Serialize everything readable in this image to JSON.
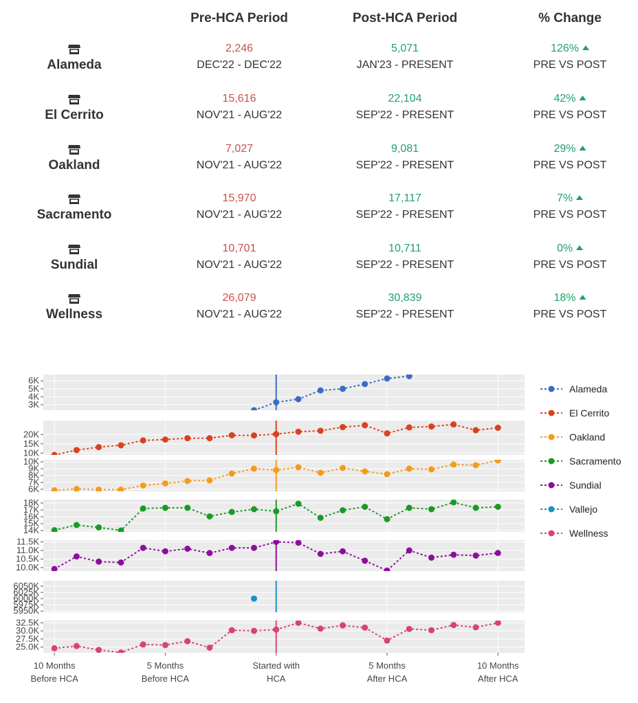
{
  "header": {
    "pre": "Pre-HCA Period",
    "post": "Post-HCA Period",
    "change": "% Change"
  },
  "stores": [
    {
      "name": "Alameda",
      "pre_value": "2,246",
      "pre_range": "DEC'22 - DEC'22",
      "post_value": "5,071",
      "post_range": "JAN'23 - PRESENT",
      "change": "126%",
      "change_label": "PRE VS POST"
    },
    {
      "name": "El Cerrito",
      "pre_value": "15,616",
      "pre_range": "NOV'21 - AUG'22",
      "post_value": "22,104",
      "post_range": "SEP'22 - PRESENT",
      "change": "42%",
      "change_label": "PRE VS POST"
    },
    {
      "name": "Oakland",
      "pre_value": "7,027",
      "pre_range": "NOV'21 - AUG'22",
      "post_value": "9,081",
      "post_range": "SEP'22 - PRESENT",
      "change": "29%",
      "change_label": "PRE VS POST"
    },
    {
      "name": "Sacramento",
      "pre_value": "15,970",
      "pre_range": "NOV'21 - AUG'22",
      "post_value": "17,117",
      "post_range": "SEP'22 - PRESENT",
      "change": "7%",
      "change_label": "PRE VS POST"
    },
    {
      "name": "Sundial",
      "pre_value": "10,701",
      "pre_range": "NOV'21 - AUG'22",
      "post_value": "10,711",
      "post_range": "SEP'22 - PRESENT",
      "change": "0%",
      "change_label": "PRE VS POST"
    },
    {
      "name": "Wellness",
      "pre_value": "26,079",
      "pre_range": "NOV'21 - AUG'22",
      "post_value": "30,839",
      "post_range": "SEP'22 - PRESENT",
      "change": "18%",
      "change_label": "PRE VS POST"
    }
  ],
  "icons": {
    "store": "store-icon",
    "trend": "triangle-up-icon"
  },
  "colors": {
    "pre": "#c9504a",
    "post": "#22a06b"
  },
  "chart_data": {
    "type": "line",
    "xlim": [
      -10.5,
      11.2
    ],
    "x_ticks": [
      {
        "x": -10,
        "line1": "10 Months",
        "line2": "Before HCA"
      },
      {
        "x": -5,
        "line1": "5 Months",
        "line2": "Before HCA"
      },
      {
        "x": 0,
        "line1": "Started with",
        "line2": "HCA"
      },
      {
        "x": 5,
        "line1": "5 Months",
        "line2": "After HCA"
      },
      {
        "x": 10,
        "line1": "10 Months",
        "line2": "After HCA"
      }
    ],
    "grid": true,
    "legend_position": "right",
    "series": [
      {
        "name": "Alameda",
        "color": "#3a6cc6",
        "ylim": [
          2300,
          6800
        ],
        "yticks": [
          {
            "v": 3000,
            "label": "3K"
          },
          {
            "v": 4000,
            "label": "4K"
          },
          {
            "v": 5000,
            "label": "5K"
          },
          {
            "v": 6000,
            "label": "6K"
          }
        ],
        "points": [
          [
            -1,
            2300
          ],
          [
            0,
            3300
          ],
          [
            1,
            3700
          ],
          [
            2,
            4800
          ],
          [
            3,
            5000
          ],
          [
            4,
            5600
          ],
          [
            5,
            6300
          ],
          [
            6,
            6600
          ]
        ]
      },
      {
        "name": "El Cerrito",
        "color": "#d9421e",
        "ylim": [
          9000,
          27500
        ],
        "yticks": [
          {
            "v": 10000,
            "label": "10K"
          },
          {
            "v": 15000,
            "label": "15K"
          },
          {
            "v": 20000,
            "label": "20K"
          }
        ],
        "points": [
          [
            -10,
            9000
          ],
          [
            -9,
            11600
          ],
          [
            -8,
            13200
          ],
          [
            -7,
            14200
          ],
          [
            -6,
            16800
          ],
          [
            -5,
            17300
          ],
          [
            -4,
            18000
          ],
          [
            -3,
            18000
          ],
          [
            -2,
            19600
          ],
          [
            -1,
            19500
          ],
          [
            0,
            20200
          ],
          [
            1,
            21500
          ],
          [
            2,
            22000
          ],
          [
            3,
            24000
          ],
          [
            4,
            25000
          ],
          [
            5,
            20600
          ],
          [
            6,
            23800
          ],
          [
            7,
            24300
          ],
          [
            8,
            25400
          ],
          [
            9,
            22300
          ],
          [
            10,
            23600
          ]
        ]
      },
      {
        "name": "Oakland",
        "color": "#f59b1b",
        "ylim": [
          5700,
          10300
        ],
        "yticks": [
          {
            "v": 6000,
            "label": "6K"
          },
          {
            "v": 7000,
            "label": "7K"
          },
          {
            "v": 8000,
            "label": "8K"
          },
          {
            "v": 9000,
            "label": "9K"
          },
          {
            "v": 10000,
            "label": "10K"
          }
        ],
        "points": [
          [
            -10,
            5850
          ],
          [
            -9,
            6050
          ],
          [
            -8,
            5950
          ],
          [
            -7,
            5950
          ],
          [
            -6,
            6550
          ],
          [
            -5,
            6850
          ],
          [
            -4,
            7200
          ],
          [
            -3,
            7300
          ],
          [
            -2,
            8300
          ],
          [
            -1,
            9000
          ],
          [
            0,
            8800
          ],
          [
            1,
            9200
          ],
          [
            2,
            8400
          ],
          [
            3,
            9100
          ],
          [
            4,
            8600
          ],
          [
            5,
            8200
          ],
          [
            6,
            9000
          ],
          [
            7,
            8900
          ],
          [
            8,
            9600
          ],
          [
            9,
            9500
          ],
          [
            10,
            10200
          ]
        ]
      },
      {
        "name": "Sacramento",
        "color": "#1a9a25",
        "ylim": [
          13800,
          18500
        ],
        "yticks": [
          {
            "v": 14000,
            "label": "14K"
          },
          {
            "v": 15000,
            "label": "15K"
          },
          {
            "v": 16000,
            "label": "16K"
          },
          {
            "v": 17000,
            "label": "17K"
          },
          {
            "v": 18000,
            "label": "18K"
          }
        ],
        "points": [
          [
            -10,
            14050
          ],
          [
            -9,
            14800
          ],
          [
            -8,
            14450
          ],
          [
            -7,
            14000
          ],
          [
            -6,
            17200
          ],
          [
            -5,
            17300
          ],
          [
            -4,
            17300
          ],
          [
            -3,
            16050
          ],
          [
            -2,
            16700
          ],
          [
            -1,
            17100
          ],
          [
            0,
            16800
          ],
          [
            1,
            17900
          ],
          [
            2,
            15850
          ],
          [
            3,
            16950
          ],
          [
            4,
            17450
          ],
          [
            5,
            15650
          ],
          [
            6,
            17300
          ],
          [
            7,
            17100
          ],
          [
            8,
            18100
          ],
          [
            9,
            17300
          ],
          [
            10,
            17450
          ]
        ]
      },
      {
        "name": "Sundial",
        "color": "#8c0e9c",
        "ylim": [
          9800,
          11600
        ],
        "yticks": [
          {
            "v": 10000,
            "label": "10.0K"
          },
          {
            "v": 10500,
            "label": "10.5K"
          },
          {
            "v": 11000,
            "label": "11.0K"
          },
          {
            "v": 11500,
            "label": "11.5K"
          }
        ],
        "points": [
          [
            -10,
            9920
          ],
          [
            -9,
            10650
          ],
          [
            -8,
            10350
          ],
          [
            -7,
            10300
          ],
          [
            -6,
            11150
          ],
          [
            -5,
            10950
          ],
          [
            -4,
            11100
          ],
          [
            -3,
            10850
          ],
          [
            -2,
            11150
          ],
          [
            -1,
            11150
          ],
          [
            0,
            11500
          ],
          [
            1,
            11450
          ],
          [
            2,
            10800
          ],
          [
            3,
            10950
          ],
          [
            4,
            10400
          ],
          [
            5,
            9830
          ],
          [
            6,
            11000
          ],
          [
            7,
            10580
          ],
          [
            8,
            10750
          ],
          [
            9,
            10700
          ],
          [
            10,
            10850
          ]
        ]
      },
      {
        "name": "Vallejo",
        "color": "#1a91c2",
        "ylim": [
          5945000,
          6072000
        ],
        "yticks": [
          {
            "v": 5950000,
            "label": "5950K"
          },
          {
            "v": 5975000,
            "label": "5975K"
          },
          {
            "v": 6000000,
            "label": "6000K"
          },
          {
            "v": 6025000,
            "label": "6025K"
          },
          {
            "v": 6050000,
            "label": "6050K"
          }
        ],
        "points": [
          [
            -1,
            6000000
          ]
        ]
      },
      {
        "name": "Wellness",
        "color": "#d9446e",
        "ylim": [
          23200,
          33200
        ],
        "yticks": [
          {
            "v": 25000,
            "label": "25.0K"
          },
          {
            "v": 27500,
            "label": "27.5K"
          },
          {
            "v": 30000,
            "label": "30.0K"
          },
          {
            "v": 32500,
            "label": "32.5K"
          }
        ],
        "points": [
          [
            -10,
            24600
          ],
          [
            -9,
            25300
          ],
          [
            -8,
            24100
          ],
          [
            -7,
            23300
          ],
          [
            -6,
            25800
          ],
          [
            -5,
            25600
          ],
          [
            -4,
            26800
          ],
          [
            -3,
            24800
          ],
          [
            -2,
            30200
          ],
          [
            -1,
            30000
          ],
          [
            0,
            30400
          ],
          [
            1,
            32500
          ],
          [
            2,
            30700
          ],
          [
            3,
            31700
          ],
          [
            4,
            31000
          ],
          [
            5,
            27000
          ],
          [
            6,
            30600
          ],
          [
            7,
            30200
          ],
          [
            8,
            31800
          ],
          [
            9,
            31100
          ],
          [
            10,
            32500
          ]
        ]
      }
    ]
  }
}
